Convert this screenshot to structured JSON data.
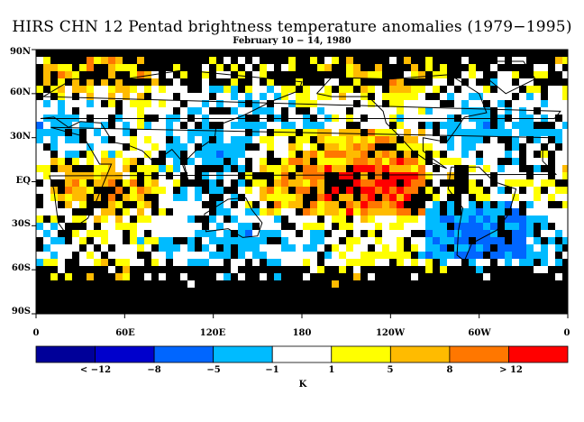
{
  "title": "HIRS CHN 12 Pentad brightness temperature anomalies (1979−1995)",
  "subtitle": "February 10 − 14, 1980",
  "latitude_labels": [
    "90N",
    "60N",
    "30N",
    "EQ",
    "30S",
    "60S",
    "90S"
  ],
  "longitude_labels": [
    "0",
    "60E",
    "120E",
    "180",
    "120W",
    "60W",
    "0"
  ],
  "colorbar": {
    "unit": "K",
    "labels": [
      "< −12",
      "−8",
      "−5",
      "−1",
      "1",
      "5",
      "8",
      "> 12"
    ],
    "colors": [
      "#000099",
      "#0000cc",
      "#0066ff",
      "#00bbff",
      "#ffffff",
      "#ffff00",
      "#ffbb00",
      "#ff7700",
      "#ff0000"
    ]
  },
  "map": {
    "missing_color": "#000000",
    "coastline_color": "#000000"
  }
}
